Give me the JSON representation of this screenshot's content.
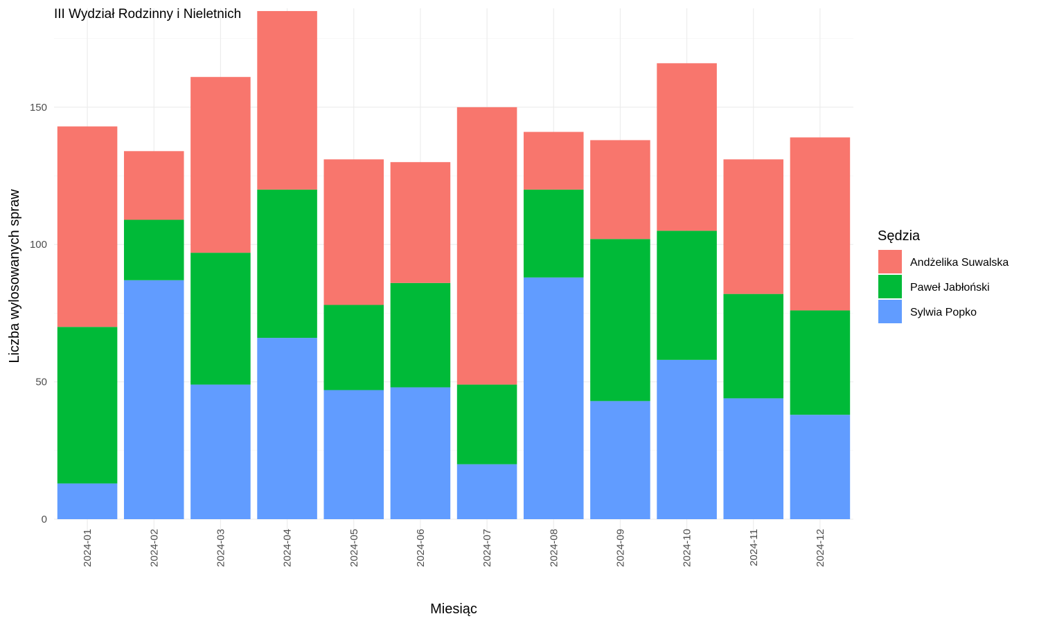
{
  "chart_data": {
    "type": "bar",
    "stacked": true,
    "title": "III Wydział Rodzinny i Nieletnich",
    "xlabel": "Miesiąc",
    "ylabel": "Liczba wylosowanych spraw",
    "ylim": [
      0,
      185
    ],
    "yticks": [
      0,
      50,
      100,
      150
    ],
    "grid": true,
    "legend": {
      "title": "Sędzia",
      "position": "right"
    },
    "categories": [
      "2024-01",
      "2024-02",
      "2024-03",
      "2024-04",
      "2024-05",
      "2024-06",
      "2024-07",
      "2024-08",
      "2024-09",
      "2024-10",
      "2024-11",
      "2024-12"
    ],
    "series": [
      {
        "name": "Sylwia Popko",
        "color": "#619CFF",
        "values": [
          13,
          87,
          49,
          66,
          47,
          48,
          20,
          88,
          43,
          58,
          44,
          38
        ]
      },
      {
        "name": "Paweł Jabłoński",
        "color": "#00BA38",
        "values": [
          57,
          22,
          48,
          54,
          31,
          38,
          29,
          32,
          59,
          47,
          38,
          38
        ]
      },
      {
        "name": "Andżelika Suwalska",
        "color": "#F8766D",
        "values": [
          73,
          25,
          64,
          65,
          53,
          44,
          101,
          21,
          36,
          61,
          49,
          63
        ]
      }
    ],
    "legend_order": [
      "Andżelika Suwalska",
      "Paweł Jabłoński",
      "Sylwia Popko"
    ]
  }
}
